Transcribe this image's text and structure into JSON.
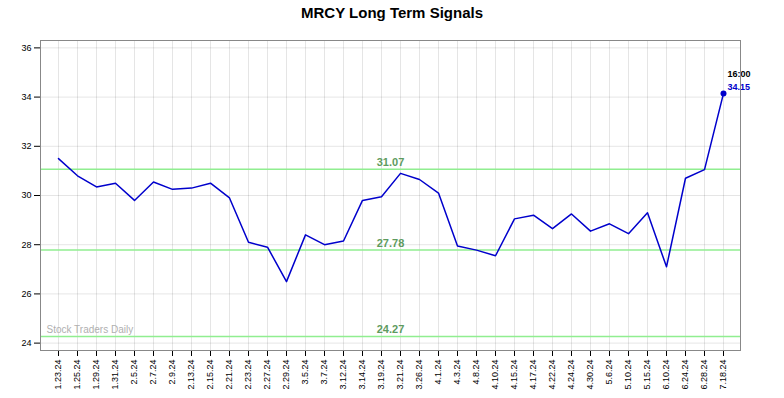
{
  "chart_data": {
    "type": "line",
    "title": "MRCY Long Term Signals",
    "categories": [
      "1.23.24",
      "1.25.24",
      "1.29.24",
      "1.31.24",
      "2.5.24",
      "2.7.24",
      "2.9.24",
      "2.13.24",
      "2.15.24",
      "2.21.24",
      "2.23.24",
      "2.27.24",
      "2.29.24",
      "3.5.24",
      "3.7.24",
      "3.12.24",
      "3.14.24",
      "3.19.24",
      "3.21.24",
      "3.26.24",
      "4.1.24",
      "4.3.24",
      "4.8.24",
      "4.10.24",
      "4.15.24",
      "4.17.24",
      "4.22.24",
      "4.24.24",
      "4.30.24",
      "5.6.24",
      "5.10.24",
      "5.15.24",
      "6.10.24",
      "6.24.24",
      "6.28.24",
      "7.18.24"
    ],
    "values": [
      31.5,
      30.8,
      30.35,
      30.5,
      29.8,
      30.55,
      30.25,
      30.3,
      30.5,
      29.9,
      28.1,
      27.9,
      26.5,
      28.4,
      28.0,
      28.15,
      29.8,
      29.95,
      30.9,
      30.65,
      30.1,
      27.95,
      27.78,
      27.55,
      29.05,
      29.2,
      28.65,
      29.25,
      28.55,
      28.85,
      28.45,
      29.3,
      27.1,
      30.7,
      31.05,
      34.15
    ],
    "color": "#0000cc",
    "ylim": [
      23.7,
      36.3
    ],
    "yticks": [
      24,
      26,
      28,
      30,
      32,
      34,
      36
    ],
    "grid": true,
    "reference_lines": [
      {
        "value": 31.07,
        "label": "31.07",
        "color": "#90ee90"
      },
      {
        "value": 27.78,
        "label": "27.78",
        "color": "#90ee90"
      },
      {
        "value": 24.27,
        "label": "24.27",
        "color": "#90ee90"
      }
    ],
    "last_point_labels": [
      "16:00",
      "34.15"
    ],
    "watermark": "Stock Traders Daily"
  }
}
